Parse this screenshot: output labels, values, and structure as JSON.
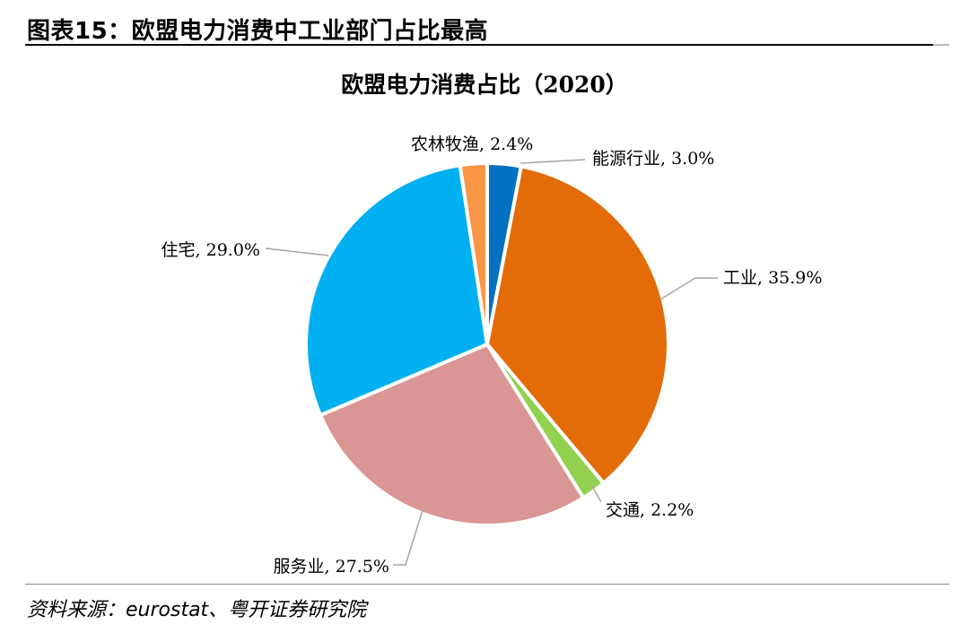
{
  "figure": {
    "title": "图表15：欧盟电力消费中工业部门占比最高",
    "source": "资料来源：eurostat、粤开证券研究院"
  },
  "chart_data": {
    "type": "pie",
    "title": "欧盟电力消费占比（2020）",
    "slices": [
      {
        "name": "能源行业",
        "value": 3.0,
        "label": "能源行业, 3.0%",
        "color": "#0070C0"
      },
      {
        "name": "工业",
        "value": 35.9,
        "label": "工业, 35.9%",
        "color": "#E36C09"
      },
      {
        "name": "交通",
        "value": 2.2,
        "label": "交通, 2.2%",
        "color": "#92D050"
      },
      {
        "name": "服务业",
        "value": 27.5,
        "label": "服务业, 27.5%",
        "color": "#D99694"
      },
      {
        "name": "住宅",
        "value": 29.0,
        "label": "住宅, 29.0%",
        "color": "#00B0F0"
      },
      {
        "name": "农林牧渔",
        "value": 2.4,
        "label": "农林牧渔, 2.4%",
        "color": "#F79646"
      }
    ]
  }
}
